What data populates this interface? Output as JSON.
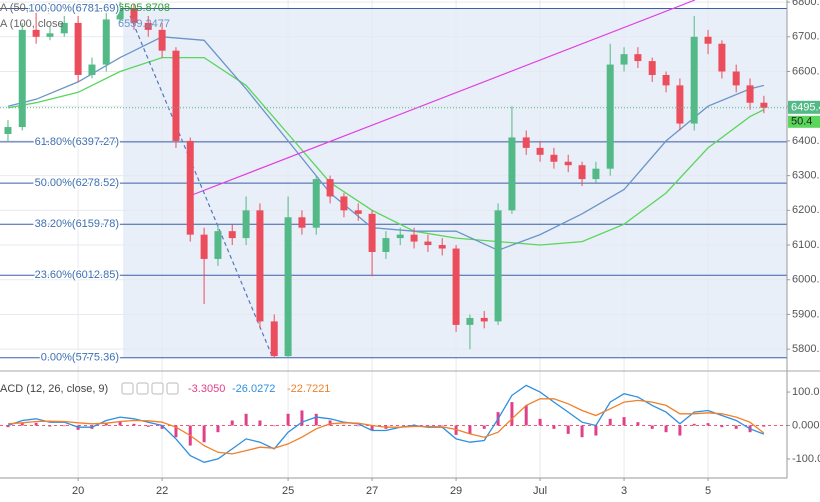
{
  "chart_data": [
    {
      "type": "candlestick",
      "x": [
        18.33,
        18.67,
        19,
        19.33,
        19.67,
        20,
        20.33,
        20.67,
        21,
        21.33,
        21.67,
        22,
        22.33,
        22.67,
        23,
        23.33,
        23.67,
        24,
        24.33,
        24.67,
        25,
        25.33,
        25.67,
        26,
        26.33,
        26.67,
        27,
        27.33,
        27.67,
        28,
        28.33,
        28.67,
        29,
        29.33,
        29.67,
        30,
        30.33,
        30.67,
        31,
        31.33,
        31.67,
        32,
        32.33,
        32.67,
        33,
        33.33,
        33.67,
        34,
        34.33,
        34.67,
        35,
        35.33,
        35.67,
        36,
        36.33
      ],
      "open": [
        6420,
        6440,
        6720,
        6700,
        6710,
        6740,
        6590,
        6620,
        6750,
        6780,
        6740,
        6720,
        6660,
        6400,
        6130,
        6060,
        6140,
        6120,
        6200,
        5880,
        5780,
        6180,
        6150,
        6290,
        6240,
        6200,
        6190,
        6080,
        6120,
        6130,
        6110,
        6100,
        6090,
        5870,
        5890,
        5880,
        6200,
        6410,
        6380,
        6360,
        6340,
        6330,
        6290,
        6320,
        6620,
        6650,
        6630,
        6590,
        6560,
        6450,
        6700,
        6680,
        6600,
        6560,
        6510
      ],
      "high": [
        6460,
        6740,
        6770,
        6730,
        6760,
        6760,
        6640,
        6770,
        6800,
        6795,
        6760,
        6740,
        6670,
        6410,
        6150,
        6160,
        6160,
        6240,
        6220,
        5900,
        6240,
        6200,
        6300,
        6300,
        6250,
        6220,
        6200,
        6140,
        6150,
        6150,
        6130,
        6120,
        6100,
        5900,
        5910,
        6220,
        6500,
        6430,
        6400,
        6380,
        6360,
        6340,
        6340,
        6680,
        6670,
        6670,
        6640,
        6600,
        6580,
        6760,
        6720,
        6690,
        6620,
        6580,
        6530
      ],
      "low": [
        6400,
        6430,
        6680,
        6690,
        6700,
        6570,
        6580,
        6600,
        6740,
        6720,
        6700,
        6640,
        6380,
        6110,
        5930,
        6040,
        6100,
        6100,
        5860,
        5775,
        5775,
        6130,
        6130,
        6220,
        6180,
        6170,
        6010,
        6060,
        6100,
        6090,
        6080,
        6070,
        5850,
        5800,
        5860,
        5870,
        6190,
        6360,
        6340,
        6320,
        6310,
        6270,
        6280,
        6300,
        6600,
        6610,
        6570,
        6540,
        6430,
        6430,
        6650,
        6580,
        6540,
        6490,
        6480
      ],
      "close": [
        6440,
        6720,
        6700,
        6710,
        6740,
        6590,
        6620,
        6750,
        6780,
        6740,
        6720,
        6660,
        6400,
        6130,
        6060,
        6140,
        6120,
        6200,
        5880,
        5780,
        6180,
        6150,
        6290,
        6240,
        6200,
        6190,
        6080,
        6120,
        6130,
        6110,
        6100,
        6090,
        5870,
        5890,
        5880,
        6200,
        6410,
        6380,
        6360,
        6340,
        6330,
        6290,
        6320,
        6620,
        6650,
        6630,
        6590,
        6560,
        6450,
        6700,
        6680,
        6600,
        6560,
        6510,
        6495.4
      ],
      "up_color": "#53b987",
      "down_color": "#eb4d5c",
      "moving_averages": [
        {
          "name": "A (50, MA)",
          "value_label": "6505.8708",
          "color": "#5ad65a",
          "x": [
            18.33,
            19,
            20,
            21,
            22,
            23,
            24,
            25,
            26,
            27,
            28,
            29,
            30,
            31,
            32,
            33,
            34,
            35,
            36,
            36.33
          ],
          "values": [
            6495,
            6510,
            6540,
            6600,
            6640,
            6640,
            6560,
            6420,
            6280,
            6200,
            6140,
            6120,
            6110,
            6100,
            6110,
            6160,
            6250,
            6380,
            6470,
            6490
          ]
        },
        {
          "name": "A (100, close",
          "value_label": "6559.2477",
          "color": "#6a95c8",
          "x": [
            18.33,
            19,
            20,
            21,
            22,
            23,
            24,
            25,
            26,
            27,
            28,
            29,
            30,
            31,
            32,
            33,
            34,
            35,
            36,
            36.33
          ],
          "values": [
            6500,
            6520,
            6570,
            6640,
            6700,
            6690,
            6550,
            6400,
            6250,
            6150,
            6140,
            6140,
            6085,
            6130,
            6190,
            6260,
            6400,
            6500,
            6550,
            6560
          ]
        }
      ],
      "fib_levels": [
        {
          "label": "100.00%(6781.69)",
          "value": 6781.69
        },
        {
          "label": "61.80%(6397.27)",
          "value": 6397.27
        },
        {
          "label": "50.00%(6278.52)",
          "value": 6278.52
        },
        {
          "label": "38.20%(6159.78)",
          "value": 6159.78
        },
        {
          "label": "23.60%(6012.85)",
          "value": 6012.85
        },
        {
          "label": "0.00%(5775.36)",
          "value": 5775.36
        }
      ],
      "fib_color": "#3d5ea8",
      "fib_start": 21.07,
      "trend_lines": [
        {
          "color": "#e040e0",
          "dashed": false,
          "x": [
            22.62,
            34.69
          ],
          "y": [
            6240,
            6806
          ]
        },
        {
          "color": "#5577bb",
          "dashed": true,
          "x": [
            21.24,
            24.62
          ],
          "y": [
            6760,
            5780
          ]
        }
      ],
      "last_price": 6495.4,
      "ma_price_label": "50.4",
      "xlim": [
        18.14,
        36.88
      ],
      "xticks": [
        20,
        22,
        25,
        27,
        29,
        {
          "value": 31,
          "label": "Jul"
        },
        {
          "value": 33,
          "label": "3"
        },
        {
          "value": 35,
          "label": "5"
        }
      ],
      "ylim": [
        5740,
        6806
      ],
      "yticks": [
        {
          "value": 6800,
          "label": "6800.00"
        },
        {
          "value": 6700,
          "label": "6700.00"
        },
        {
          "value": 6600,
          "label": "6600.00"
        },
        {
          "value": 6500,
          "label": "6500.00"
        },
        {
          "value": 6400,
          "label": "6400.00"
        },
        {
          "value": 6300,
          "label": "6300.00"
        },
        {
          "value": 6200,
          "label": "6200.00"
        },
        {
          "value": 6100,
          "label": "6100.00"
        },
        {
          "value": 6000,
          "label": "6000.00"
        },
        {
          "value": 5900,
          "label": "5900.00"
        },
        {
          "value": 5800,
          "label": "5800.00"
        }
      ],
      "grid": true
    },
    {
      "type": "macd",
      "title": "ACD (12, 26, close, 9)",
      "histogram": {
        "color": "#e0408a",
        "value_label": "-3.3050",
        "values": [
          -5,
          7,
          8,
          -3,
          -2,
          -13,
          -10,
          8,
          13,
          5,
          -4,
          -10,
          -35,
          -60,
          -50,
          -20,
          15,
          35,
          15,
          -2,
          35,
          45,
          35,
          15,
          2,
          -2,
          -15,
          -10,
          0,
          3,
          -2,
          -1,
          -28,
          -25,
          -10,
          40,
          70,
          60,
          20,
          -10,
          -25,
          -35,
          -30,
          20,
          25,
          10,
          -10,
          -20,
          -30,
          5,
          7,
          -5,
          -10,
          -20,
          -3.305
        ]
      },
      "macd": {
        "color": "#2f8fe0",
        "value_label": "-26.0272",
        "values": [
          0,
          15,
          20,
          10,
          10,
          -5,
          -5,
          15,
          25,
          20,
          10,
          0,
          -40,
          -90,
          -110,
          -100,
          -70,
          -40,
          -50,
          -70,
          -20,
          10,
          25,
          20,
          10,
          5,
          -15,
          -15,
          -5,
          0,
          -5,
          -5,
          -40,
          -50,
          -45,
          20,
          90,
          120,
          100,
          70,
          40,
          10,
          0,
          70,
          95,
          85,
          60,
          40,
          5,
          40,
          45,
          30,
          15,
          -10,
          -26.0272
        ]
      },
      "signal": {
        "color": "#f0802a",
        "value_label": "-22.7221",
        "values": [
          5,
          8,
          12,
          13,
          12,
          8,
          5,
          7,
          12,
          15,
          14,
          10,
          -5,
          -30,
          -60,
          -80,
          -85,
          -75,
          -65,
          -68,
          -55,
          -35,
          -10,
          5,
          8,
          7,
          0,
          -5,
          -5,
          -3,
          -3,
          -4,
          -12,
          -25,
          -35,
          -20,
          20,
          60,
          80,
          80,
          65,
          45,
          30,
          50,
          70,
          75,
          70,
          60,
          35,
          35,
          38,
          35,
          25,
          10,
          -22.7221
        ]
      },
      "ylim": [
        -157,
        160
      ],
      "yticks": [
        {
          "value": 100,
          "label": "100.000"
        },
        {
          "value": 0,
          "label": "0.000"
        },
        {
          "value": -100,
          "label": "-100.000"
        }
      ]
    }
  ]
}
